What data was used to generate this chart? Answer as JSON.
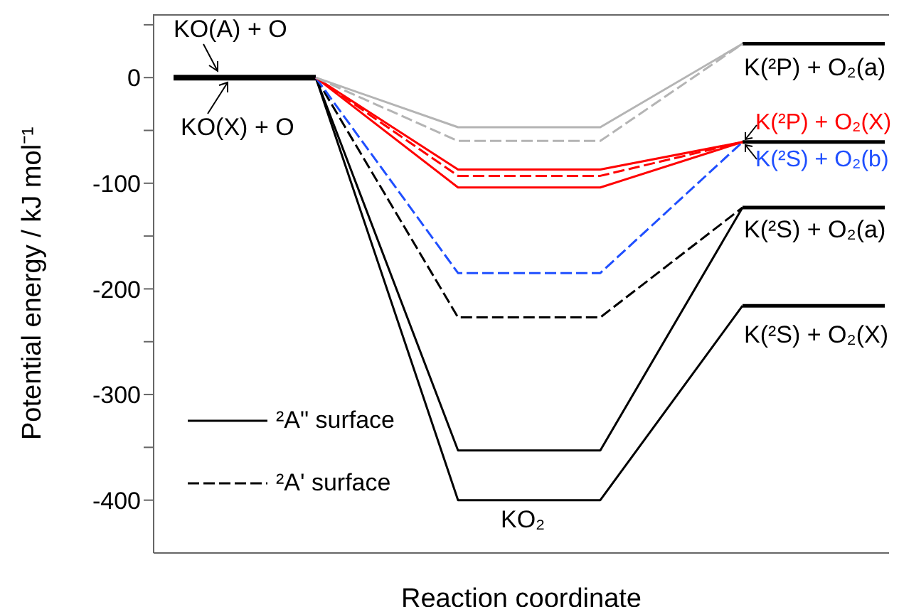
{
  "chart_data": {
    "type": "line",
    "ylabel": "Potential energy / kJ mol⁻¹",
    "xlabel": "Reaction coordinate",
    "categories": [
      null,
      null,
      null,
      null,
      null,
      null
    ],
    "ylim": [
      -450,
      60
    ],
    "yticks": [
      {
        "value": 50,
        "label": null
      },
      0,
      {
        "value": -50,
        "label": null
      },
      -100,
      {
        "value": -150,
        "label": null
      },
      -200,
      {
        "value": -250,
        "label": null
      },
      -300,
      {
        "value": -350,
        "label": null
      },
      -400
    ],
    "tick_labels": "y",
    "grid": false,
    "legend": "bottom left",
    "marker": "none",
    "series": [
      {
        "color": "#000000",
        "line_style": "solid",
        "values": [
          0,
          0,
          null,
          null,
          null,
          null
        ]
      },
      {
        "color": "#000000",
        "line_style": "solid",
        "values": [
          null,
          null,
          null,
          null,
          32,
          32
        ]
      },
      {
        "color": "#000000",
        "line_style": "solid",
        "values": [
          null,
          null,
          null,
          null,
          -61,
          -61
        ]
      },
      {
        "color": "#000000",
        "line_style": "solid",
        "values": [
          null,
          null,
          null,
          null,
          -123,
          -123
        ]
      },
      {
        "color": "#000000",
        "line_style": "solid",
        "values": [
          null,
          null,
          null,
          null,
          -216,
          -216
        ]
      },
      {
        "color": "#b4b4b4",
        "line_style": "solid",
        "values": [
          null,
          0,
          -47,
          -47,
          32,
          null
        ]
      },
      {
        "color": "#b4b4b4",
        "line_style": "dashed",
        "values": [
          null,
          0,
          -60,
          -60,
          32,
          null
        ]
      },
      {
        "color": "#ff0000",
        "line_style": "solid",
        "values": [
          null,
          0,
          -87,
          -87,
          -61,
          null
        ]
      },
      {
        "color": "#ff0000",
        "line_style": "dashed",
        "values": [
          null,
          0,
          -93,
          -93,
          -61,
          null
        ]
      },
      {
        "color": "#ff0000",
        "line_style": "solid",
        "values": [
          null,
          0,
          -104,
          -104,
          -61,
          null
        ]
      },
      {
        "color": "#1f4fff",
        "line_style": "dashed",
        "values": [
          null,
          0,
          -185,
          -185,
          -61,
          null
        ]
      },
      {
        "name": "²A' surface",
        "color": "#000000",
        "line_style": "dashed",
        "values": [
          null,
          0,
          -227,
          -227,
          -123,
          null
        ]
      },
      {
        "name": "²A\" surface",
        "color": "#000000",
        "line_style": "solid",
        "values": [
          null,
          0,
          -353,
          -353,
          -123,
          null
        ]
      },
      {
        "color": "#000000",
        "line_style": "solid",
        "values": [
          null,
          0,
          -400,
          -400,
          -216,
          null
        ]
      }
    ],
    "annotations": [
      "KO(A) + O",
      "KO(X) + O",
      "K(²P) + O₂(a)",
      "K(²P) + O₂(X)",
      "K(²S) + O₂(b)",
      "K(²S) + O₂(a)",
      "K(²S) + O₂(X)",
      "KO₂"
    ]
  }
}
